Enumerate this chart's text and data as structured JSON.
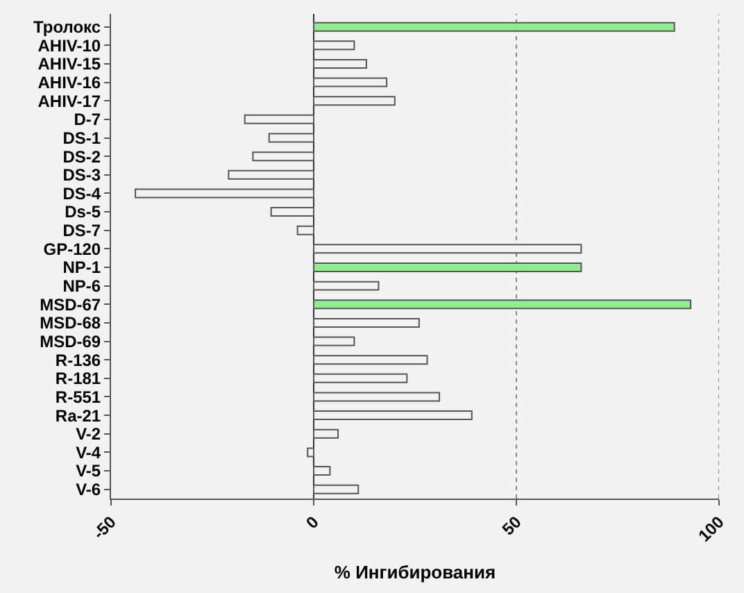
{
  "chart_data": {
    "type": "bar",
    "orientation": "horizontal",
    "xlabel": "% Ингибирования",
    "categories": [
      "Тролокс",
      "AHIV-10",
      "AHIV-15",
      "AHIV-16",
      "AHIV-17",
      "D-7",
      "DS-1",
      "DS-2",
      "DS-3",
      "DS-4",
      "Ds-5",
      "DS-7",
      "GP-120",
      "NP-1",
      "NP-6",
      "MSD-67",
      "MSD-68",
      "MSD-69",
      "R-136",
      "R-181",
      "R-551",
      "Ra-21",
      "V-2",
      "V-4",
      "V-5",
      "V-6"
    ],
    "values": [
      89,
      10,
      13,
      18,
      20,
      -17,
      -11,
      -15,
      -21,
      -44,
      -10.5,
      -4,
      66,
      66,
      16,
      93,
      26,
      10,
      28,
      23,
      31,
      39,
      6,
      -1.5,
      4,
      11
    ],
    "colors": [
      "#90ee90",
      "#f2f2f2",
      "#f2f2f2",
      "#f2f2f2",
      "#f2f2f2",
      "#f2f2f2",
      "#f2f2f2",
      "#f2f2f2",
      "#f2f2f2",
      "#f2f2f2",
      "#f2f2f2",
      "#f2f2f2",
      "#f2f2f2",
      "#90ee90",
      "#f2f2f2",
      "#90ee90",
      "#f2f2f2",
      "#f2f2f2",
      "#f2f2f2",
      "#f2f2f2",
      "#f2f2f2",
      "#f2f2f2",
      "#f2f2f2",
      "#f2f2f2",
      "#f2f2f2",
      "#f2f2f2"
    ],
    "xlim": [
      -50,
      100
    ],
    "xticks": [
      -50,
      0,
      50,
      100
    ],
    "ref_lines": [
      {
        "axis": "x",
        "value": 50,
        "color": "#888888",
        "line_style": "dotted"
      },
      {
        "axis": "x",
        "value": 100,
        "color": "#888888",
        "line_style": "dotted"
      }
    ]
  }
}
